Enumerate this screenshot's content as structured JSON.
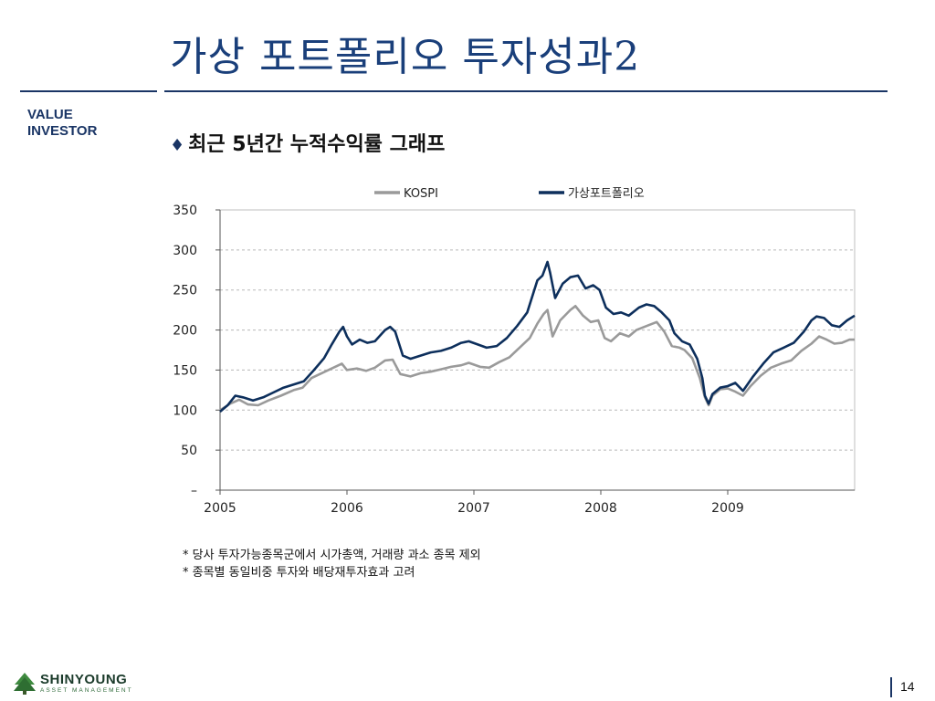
{
  "slide": {
    "title": "가상 포트폴리오 투자성과2",
    "brand_line1": "VALUE",
    "brand_line2": "INVESTOR",
    "subtitle_marker": "♦",
    "subtitle": "최근 5년간 누적수익률 그래프",
    "notes": [
      "* 당사 투자가능종목군에서 시가총액, 거래량 과소 종목 제외",
      "* 종목별 동일비중 투자와 배당재투자효과 고려"
    ],
    "logo_name": "SHINYOUNG",
    "logo_sub": "ASSET MANAGEMENT",
    "page_number": "14"
  },
  "chart_data": {
    "type": "line",
    "xlabel": "",
    "ylabel": "",
    "x_ticks": [
      "2005",
      "2006",
      "2007",
      "2008",
      "2009"
    ],
    "y_ticks": [
      "–",
      "50",
      "100",
      "150",
      "200",
      "250",
      "300",
      "350"
    ],
    "xlim": [
      2005.0,
      2010.0
    ],
    "ylim": [
      0,
      350
    ],
    "grid": "dashed-horizontal",
    "legend_position": "top",
    "series": [
      {
        "name": "KOSPI",
        "color": "#9a9a9a",
        "points": [
          [
            2005.0,
            100
          ],
          [
            2005.08,
            108
          ],
          [
            2005.15,
            113
          ],
          [
            2005.22,
            107
          ],
          [
            2005.3,
            106
          ],
          [
            2005.38,
            112
          ],
          [
            2005.48,
            118
          ],
          [
            2005.58,
            125
          ],
          [
            2005.65,
            128
          ],
          [
            2005.72,
            140
          ],
          [
            2005.8,
            146
          ],
          [
            2005.88,
            152
          ],
          [
            2005.96,
            158
          ],
          [
            2006.0,
            150
          ],
          [
            2006.08,
            152
          ],
          [
            2006.15,
            149
          ],
          [
            2006.22,
            153
          ],
          [
            2006.3,
            162
          ],
          [
            2006.36,
            163
          ],
          [
            2006.42,
            145
          ],
          [
            2006.5,
            142
          ],
          [
            2006.58,
            146
          ],
          [
            2006.66,
            148
          ],
          [
            2006.74,
            151
          ],
          [
            2006.82,
            154
          ],
          [
            2006.9,
            156
          ],
          [
            2006.96,
            159
          ],
          [
            2007.05,
            154
          ],
          [
            2007.12,
            153
          ],
          [
            2007.2,
            160
          ],
          [
            2007.28,
            166
          ],
          [
            2007.36,
            178
          ],
          [
            2007.44,
            190
          ],
          [
            2007.5,
            208
          ],
          [
            2007.55,
            220
          ],
          [
            2007.58,
            225
          ],
          [
            2007.62,
            192
          ],
          [
            2007.68,
            212
          ],
          [
            2007.76,
            225
          ],
          [
            2007.8,
            230
          ],
          [
            2007.86,
            218
          ],
          [
            2007.92,
            210
          ],
          [
            2007.98,
            212
          ],
          [
            2008.03,
            190
          ],
          [
            2008.08,
            186
          ],
          [
            2008.15,
            196
          ],
          [
            2008.22,
            192
          ],
          [
            2008.28,
            200
          ],
          [
            2008.36,
            205
          ],
          [
            2008.44,
            210
          ],
          [
            2008.5,
            198
          ],
          [
            2008.56,
            180
          ],
          [
            2008.62,
            178
          ],
          [
            2008.66,
            175
          ],
          [
            2008.72,
            165
          ],
          [
            2008.78,
            140
          ],
          [
            2008.82,
            116
          ],
          [
            2008.85,
            106
          ],
          [
            2008.88,
            118
          ],
          [
            2008.94,
            126
          ],
          [
            2009.0,
            127
          ],
          [
            2009.06,
            123
          ],
          [
            2009.12,
            118
          ],
          [
            2009.18,
            130
          ],
          [
            2009.26,
            143
          ],
          [
            2009.34,
            153
          ],
          [
            2009.42,
            158
          ],
          [
            2009.5,
            162
          ],
          [
            2009.58,
            174
          ],
          [
            2009.66,
            183
          ],
          [
            2009.72,
            192
          ],
          [
            2009.78,
            188
          ],
          [
            2009.84,
            183
          ],
          [
            2009.9,
            184
          ],
          [
            2009.96,
            188
          ],
          [
            2010.0,
            188
          ]
        ]
      },
      {
        "name": "가상포트폴리오",
        "color": "#0d2f5c",
        "points": [
          [
            2005.0,
            98
          ],
          [
            2005.06,
            106
          ],
          [
            2005.12,
            118
          ],
          [
            2005.18,
            116
          ],
          [
            2005.26,
            112
          ],
          [
            2005.34,
            116
          ],
          [
            2005.42,
            122
          ],
          [
            2005.5,
            128
          ],
          [
            2005.58,
            132
          ],
          [
            2005.66,
            136
          ],
          [
            2005.74,
            150
          ],
          [
            2005.82,
            165
          ],
          [
            2005.88,
            182
          ],
          [
            2005.94,
            198
          ],
          [
            2005.97,
            204
          ],
          [
            2006.0,
            192
          ],
          [
            2006.04,
            182
          ],
          [
            2006.1,
            188
          ],
          [
            2006.16,
            184
          ],
          [
            2006.22,
            186
          ],
          [
            2006.3,
            200
          ],
          [
            2006.34,
            204
          ],
          [
            2006.38,
            198
          ],
          [
            2006.44,
            168
          ],
          [
            2006.5,
            164
          ],
          [
            2006.58,
            168
          ],
          [
            2006.66,
            172
          ],
          [
            2006.74,
            174
          ],
          [
            2006.82,
            178
          ],
          [
            2006.9,
            184
          ],
          [
            2006.96,
            186
          ],
          [
            2007.03,
            182
          ],
          [
            2007.1,
            178
          ],
          [
            2007.18,
            180
          ],
          [
            2007.26,
            190
          ],
          [
            2007.34,
            205
          ],
          [
            2007.42,
            222
          ],
          [
            2007.5,
            262
          ],
          [
            2007.54,
            268
          ],
          [
            2007.58,
            285
          ],
          [
            2007.6,
            272
          ],
          [
            2007.64,
            240
          ],
          [
            2007.7,
            258
          ],
          [
            2007.76,
            266
          ],
          [
            2007.82,
            268
          ],
          [
            2007.88,
            252
          ],
          [
            2007.94,
            256
          ],
          [
            2007.99,
            250
          ],
          [
            2008.04,
            228
          ],
          [
            2008.1,
            220
          ],
          [
            2008.16,
            222
          ],
          [
            2008.22,
            218
          ],
          [
            2008.3,
            228
          ],
          [
            2008.36,
            232
          ],
          [
            2008.42,
            230
          ],
          [
            2008.48,
            222
          ],
          [
            2008.54,
            212
          ],
          [
            2008.58,
            196
          ],
          [
            2008.64,
            186
          ],
          [
            2008.7,
            182
          ],
          [
            2008.76,
            164
          ],
          [
            2008.8,
            140
          ],
          [
            2008.82,
            118
          ],
          [
            2008.85,
            108
          ],
          [
            2008.88,
            120
          ],
          [
            2008.94,
            128
          ],
          [
            2009.0,
            130
          ],
          [
            2009.06,
            134
          ],
          [
            2009.12,
            124
          ],
          [
            2009.2,
            142
          ],
          [
            2009.28,
            158
          ],
          [
            2009.36,
            172
          ],
          [
            2009.44,
            178
          ],
          [
            2009.52,
            184
          ],
          [
            2009.6,
            198
          ],
          [
            2009.66,
            212
          ],
          [
            2009.7,
            217
          ],
          [
            2009.76,
            215
          ],
          [
            2009.82,
            206
          ],
          [
            2009.88,
            204
          ],
          [
            2009.94,
            212
          ],
          [
            2010.0,
            218
          ]
        ]
      }
    ]
  }
}
